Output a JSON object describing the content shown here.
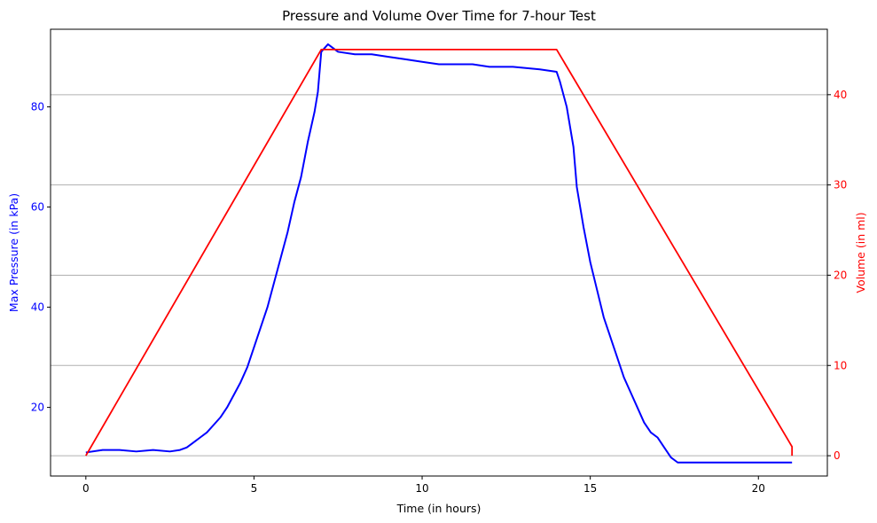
{
  "chart_data": {
    "type": "line",
    "title": "Pressure and Volume Over Time for 7-hour Test",
    "xlabel": "Time (in hours)",
    "ylabel_left": "Max Pressure (in kPa)",
    "ylabel_right": "Volume (in ml)",
    "xlim": [
      -1.05,
      22.05
    ],
    "ylim_left": [
      6.3,
      95.5
    ],
    "ylim_right": [
      -2.25,
      47.25
    ],
    "x_ticks": [
      0,
      5,
      10,
      15,
      20
    ],
    "y_left_ticks": [
      20,
      40,
      60,
      80
    ],
    "y_right_ticks": [
      0,
      10,
      20,
      30,
      40
    ],
    "grid": "horizontal lines at right-axis ticks",
    "colors": {
      "pressure": "#0000ff",
      "volume": "#ff0000",
      "grid": "#b0b0b0"
    },
    "series": [
      {
        "axis": "left",
        "color": "#0000ff",
        "x": [
          0,
          0.5,
          1.0,
          1.5,
          2.0,
          2.5,
          2.8,
          3.0,
          3.2,
          3.4,
          3.6,
          3.8,
          4.0,
          4.2,
          4.4,
          4.6,
          4.8,
          5.0,
          5.2,
          5.4,
          5.6,
          5.8,
          6.0,
          6.2,
          6.4,
          6.6,
          6.8,
          6.9,
          7.0,
          7.2,
          7.5,
          8.0,
          8.5,
          9.0,
          9.5,
          10.0,
          10.5,
          11.0,
          11.5,
          12.0,
          12.7,
          13.5,
          14.0,
          14.1,
          14.3,
          14.5,
          14.6,
          14.8,
          15.0,
          15.2,
          15.4,
          15.6,
          15.8,
          16.0,
          16.2,
          16.4,
          16.6,
          16.8,
          17.0,
          17.2,
          17.4,
          17.6,
          18.0,
          19.0,
          20.0,
          21.0
        ],
        "values": [
          11,
          11.5,
          11.5,
          11.2,
          11.5,
          11.2,
          11.5,
          12,
          13,
          14,
          15,
          16.5,
          18,
          20,
          22.5,
          25,
          28,
          32,
          36,
          40,
          45,
          50,
          55,
          61,
          66,
          73,
          79,
          83,
          91,
          92.5,
          91,
          90.5,
          90.5,
          90,
          89.5,
          89,
          88.5,
          88.5,
          88.5,
          88,
          88,
          87.5,
          87,
          85,
          80,
          72,
          64,
          56,
          49,
          43.5,
          38,
          34,
          30,
          26,
          23,
          20,
          17,
          15,
          14,
          12,
          10,
          9,
          9,
          9,
          9,
          9
        ]
      },
      {
        "axis": "right",
        "color": "#ff0000",
        "x": [
          0,
          7,
          14,
          21,
          21
        ],
        "values": [
          0,
          45,
          45,
          1,
          0
        ]
      }
    ]
  }
}
